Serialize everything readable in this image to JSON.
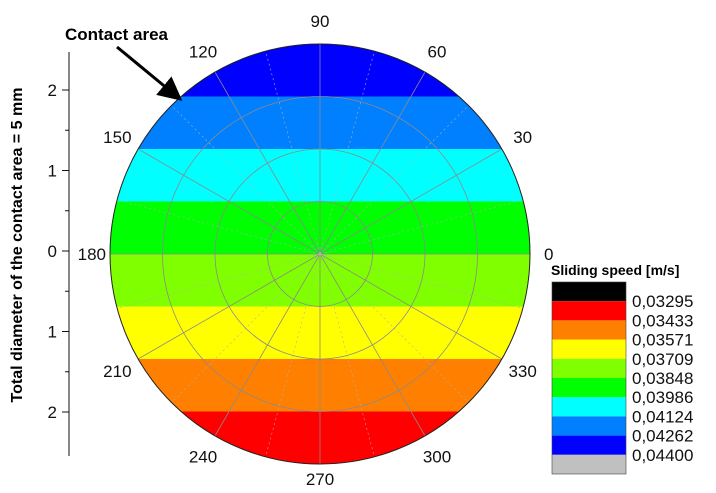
{
  "chart_data": {
    "type": "polar-contour",
    "annotation": "Contact area",
    "ylabel": "Total diameter of the contact area = 5 mm",
    "angle_ticks": [
      0,
      30,
      60,
      90,
      120,
      150,
      180,
      210,
      240,
      270,
      300,
      330
    ],
    "radial_ticks": [
      "2",
      "1",
      "0",
      "1",
      "2"
    ],
    "legend": {
      "title": "Sliding speed [m/s]",
      "levels": [
        "0,03295",
        "0,03433",
        "0,03571",
        "0,03709",
        "0,03848",
        "0,03986",
        "0,04124",
        "0,04262",
        "0,04400"
      ],
      "colors": [
        "#000000",
        "#ff0000",
        "#ff8000",
        "#ffff00",
        "#80ff00",
        "#00ff00",
        "#00ffff",
        "#0080ff",
        "#0000ff",
        "#c0c0c0"
      ]
    },
    "bands_top_to_bottom": [
      {
        "color": "#0000ff",
        "range": "0,04262 - 0,04400"
      },
      {
        "color": "#0080ff",
        "range": "0,04124 - 0,04262"
      },
      {
        "color": "#00ffff",
        "range": "0,03986 - 0,04124"
      },
      {
        "color": "#00ff00",
        "range": "0,03848 - 0,03986"
      },
      {
        "color": "#80ff00",
        "range": "0,03709 - 0,03848"
      },
      {
        "color": "#ffff00",
        "range": "0,03571 - 0,03709"
      },
      {
        "color": "#ff8000",
        "range": "0,03433 - 0,03571"
      },
      {
        "color": "#ff0000",
        "range": "0,03295 - 0,03433"
      }
    ],
    "grid": true
  }
}
